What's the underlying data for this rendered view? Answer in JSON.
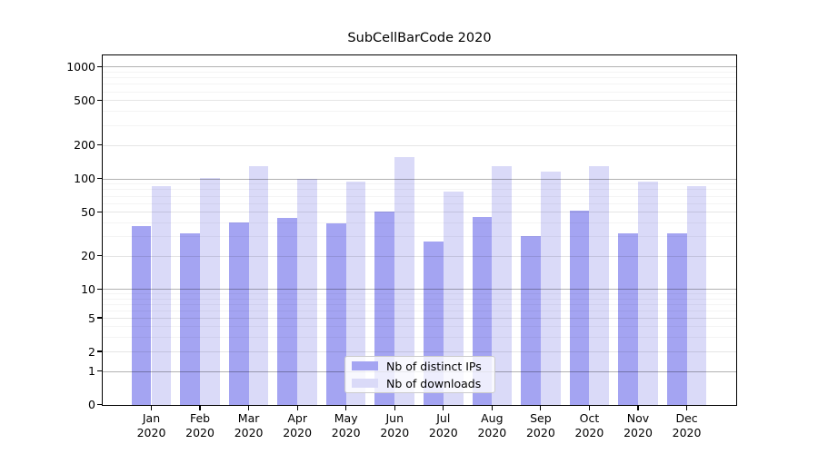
{
  "chart_data": {
    "type": "bar",
    "title": "SubCellBarCode 2020",
    "categories": [
      "Jan 2020",
      "Feb 2020",
      "Mar 2020",
      "Apr 2020",
      "May 2020",
      "Jun 2020",
      "Jul 2020",
      "Aug 2020",
      "Sep 2020",
      "Oct 2020",
      "Nov 2020",
      "Dec 2020"
    ],
    "series": [
      {
        "name": "Nb of distinct IPs",
        "color": "#a4a4f2",
        "values": [
          37,
          32,
          40,
          44,
          39,
          50,
          27,
          45,
          30,
          51,
          32,
          32
        ]
      },
      {
        "name": "Nb of downloads",
        "color": "#dadaf8",
        "values": [
          86,
          101,
          128,
          100,
          94,
          155,
          77,
          129,
          115,
          129,
          94,
          86
        ]
      }
    ],
    "yscale": "log-like with 0 baseline",
    "y_ticks": [
      0,
      1,
      2,
      5,
      10,
      20,
      50,
      100,
      200,
      500,
      1000
    ],
    "ylim": [
      0,
      1300
    ],
    "xlabel": "",
    "ylabel": "",
    "grid": "horizontal, major and minor",
    "legend_position": "lower center"
  },
  "colors": {
    "background": "#ffffff",
    "spine": "#000000",
    "major_gridline": "#b3b3b3",
    "minor_gridline": "#f0f0f0"
  }
}
